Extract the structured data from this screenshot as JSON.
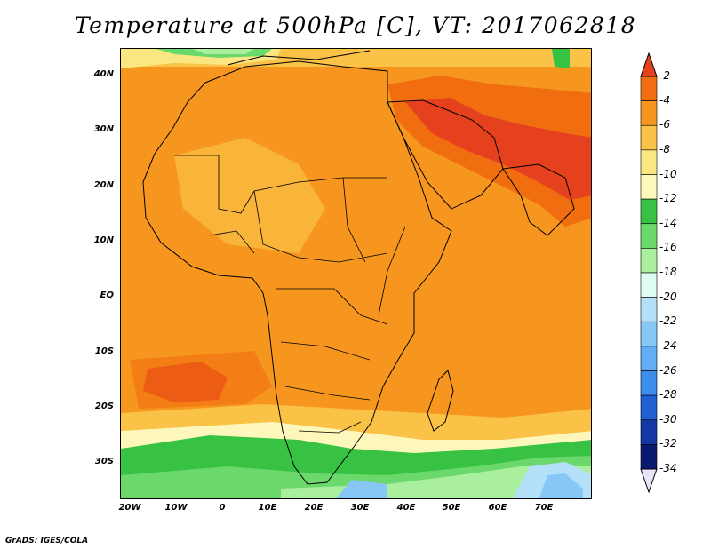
{
  "title": "Temperature at 500hPa [C], VT: 2017062818",
  "footer": "GrADS: IGES/COLA",
  "map": {
    "region": "Africa and Arabian Peninsula",
    "lat_labels": [
      "40N",
      "30N",
      "20N",
      "10N",
      "EQ",
      "10S",
      "20S",
      "30S"
    ],
    "lon_labels": [
      "20W",
      "10W",
      "0",
      "10E",
      "20E",
      "30E",
      "40E",
      "50E",
      "60E",
      "70E"
    ]
  },
  "colorbar": {
    "labels": [
      "-2",
      "-4",
      "-6",
      "-8",
      "-10",
      "-12",
      "-14",
      "-16",
      "-18",
      "-20",
      "-22",
      "-24",
      "-26",
      "-28",
      "-30",
      "-32",
      "-34"
    ],
    "colors": [
      "#e6411e",
      "#f06e0f",
      "#f7961e",
      "#fac246",
      "#fbe782",
      "#fdf7bc",
      "#38c244",
      "#6ad86b",
      "#a9ef9e",
      "#dffcf2",
      "#b5e0fa",
      "#86c7f6",
      "#61aef4",
      "#3d8ded",
      "#2060d4",
      "#1238a5",
      "#0a1a71",
      "#e8e2fa"
    ]
  }
}
